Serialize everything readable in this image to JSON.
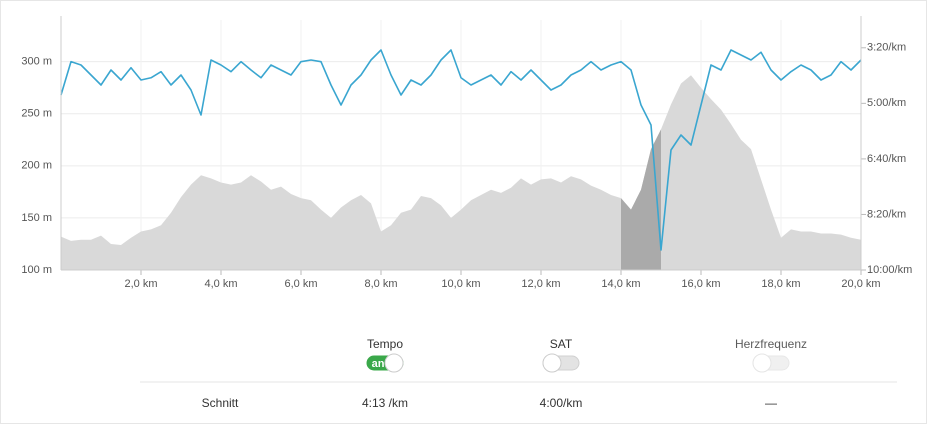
{
  "chart_data": {
    "type": "area",
    "x": [
      0,
      0.25,
      0.5,
      0.75,
      1,
      1.25,
      1.5,
      1.75,
      2,
      2.25,
      2.5,
      2.75,
      3,
      3.25,
      3.5,
      3.75,
      4,
      4.25,
      4.5,
      4.75,
      5,
      5.25,
      5.5,
      5.75,
      6,
      6.25,
      6.5,
      6.75,
      7,
      7.25,
      7.5,
      7.75,
      8,
      8.25,
      8.5,
      8.75,
      9,
      9.25,
      9.5,
      9.75,
      10,
      10.25,
      10.5,
      10.75,
      11,
      11.25,
      11.5,
      11.75,
      12,
      12.25,
      12.5,
      12.75,
      13,
      13.25,
      13.5,
      13.75,
      14,
      14.25,
      14.5,
      14.75,
      15,
      15.25,
      15.5,
      15.75,
      16,
      16.25,
      16.5,
      16.75,
      17,
      17.25,
      17.5,
      17.75,
      18,
      18.25,
      18.5,
      18.75,
      19,
      19.25,
      19.5,
      19.75,
      20
    ],
    "series": [
      {
        "type": "area",
        "color": "#d9d9d9",
        "values": [
          132,
          128,
          129,
          129,
          133,
          125,
          124,
          131,
          137,
          139,
          143,
          155,
          170,
          182,
          191,
          188,
          184,
          182,
          184,
          191,
          185,
          177,
          180,
          173,
          169,
          167,
          158,
          150,
          160,
          167,
          172,
          164,
          137,
          143,
          155,
          158,
          171,
          169,
          162,
          150,
          158,
          167,
          172,
          177,
          174,
          179,
          188,
          182,
          187,
          188,
          184,
          190,
          187,
          181,
          177,
          172,
          169,
          158,
          177,
          216,
          235,
          259,
          279,
          287,
          275,
          264,
          254,
          240,
          225,
          216,
          187,
          158,
          131,
          139,
          137,
          137,
          135,
          135,
          134,
          131,
          129
        ]
      },
      {
        "type": "line",
        "color": "#3aa6d0",
        "axis": "y2",
        "values": [
          285,
          225,
          231,
          249,
          267,
          240,
          258,
          236,
          258,
          254,
          243,
          267,
          249,
          276,
          321,
          222,
          231,
          243,
          225,
          240,
          254,
          231,
          240,
          249,
          225,
          222,
          225,
          267,
          303,
          267,
          249,
          222,
          204,
          249,
          285,
          258,
          267,
          249,
          222,
          204,
          254,
          267,
          258,
          249,
          267,
          243,
          258,
          240,
          258,
          276,
          267,
          249,
          240,
          225,
          240,
          231,
          225,
          240,
          303,
          339,
          564,
          384,
          357,
          375,
          303,
          231,
          240,
          204,
          213,
          222,
          208,
          240,
          258,
          243,
          231,
          240,
          258,
          249,
          225,
          240,
          222
        ]
      }
    ],
    "highlight": {
      "x": [
        14,
        15
      ],
      "color": "#aaaaaa"
    },
    "xlim": [
      0,
      20
    ],
    "xticks": [
      {
        "value": 2,
        "label": "2,0 km"
      },
      {
        "value": 4,
        "label": "4,0 km"
      },
      {
        "value": 6,
        "label": "6,0 km"
      },
      {
        "value": 8,
        "label": "8,0 km"
      },
      {
        "value": 10,
        "label": "10,0 km"
      },
      {
        "value": 12,
        "label": "12,0 km"
      },
      {
        "value": 14,
        "label": "14,0 km"
      },
      {
        "value": 16,
        "label": "16,0 km"
      },
      {
        "value": 18,
        "label": "18,0 km"
      },
      {
        "value": 20,
        "label": "20,0 km"
      }
    ],
    "ylim": [
      100,
      340
    ],
    "yticks": [
      {
        "value": 100,
        "label": "100 m"
      },
      {
        "value": 150,
        "label": "150 m"
      },
      {
        "value": 200,
        "label": "200 m"
      },
      {
        "value": 250,
        "label": "250 m"
      },
      {
        "value": 300,
        "label": "300 m"
      }
    ],
    "y2lim": [
      600,
      150
    ],
    "y2ticks": [
      {
        "value": 600,
        "label": "10:00/km"
      },
      {
        "value": 500,
        "label": "8:20/km"
      },
      {
        "value": 400,
        "label": "6:40/km"
      },
      {
        "value": 300,
        "label": "5:00/km"
      },
      {
        "value": 200,
        "label": "3:20/km"
      }
    ],
    "grid": true
  },
  "controls": [
    {
      "label": "Tempo",
      "on": true,
      "on_label": "an",
      "enabled": true
    },
    {
      "label": "SAT",
      "on": false,
      "enabled": true
    },
    {
      "label": "Herzfrequenz",
      "on": false,
      "enabled": false
    }
  ],
  "summary": {
    "label": "Schnitt",
    "values": [
      "4:13 /km",
      "4:00/km",
      "—"
    ]
  }
}
